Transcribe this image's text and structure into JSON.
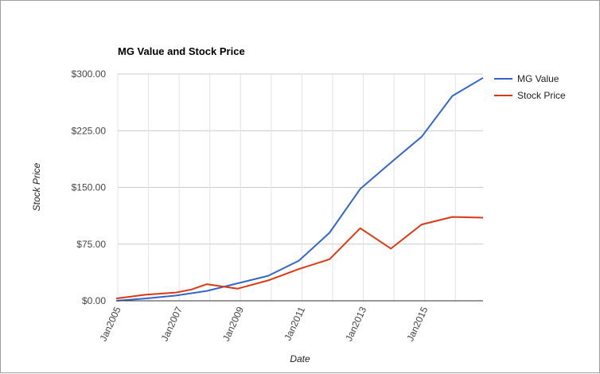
{
  "chart_data": {
    "type": "line",
    "title": "MG Value and Stock Price",
    "xlabel": "Date",
    "ylabel": "Stock Price",
    "ylim": [
      0,
      300
    ],
    "xlim": [
      2005.0,
      2016.9
    ],
    "yticks": [
      {
        "value": 0,
        "label": "$0.00"
      },
      {
        "value": 75,
        "label": "$75.00"
      },
      {
        "value": 150,
        "label": "$150.00"
      },
      {
        "value": 225,
        "label": "$225.00"
      },
      {
        "value": 300,
        "label": "$300.00"
      }
    ],
    "xticks": [
      {
        "value": 2005,
        "label": "Jan2005"
      },
      {
        "value": 2007,
        "label": "Jan2007"
      },
      {
        "value": 2009,
        "label": "Jan2009"
      },
      {
        "value": 2011,
        "label": "Jan2011"
      },
      {
        "value": 2013,
        "label": "Jan2013"
      },
      {
        "value": 2015,
        "label": "Jan2015"
      }
    ],
    "grid": true,
    "legend_position": "right",
    "series": [
      {
        "name": "MG Value",
        "color": "#3366cc",
        "points": [
          {
            "x": 2004.95,
            "y": 0
          },
          {
            "x": 2005.9,
            "y": 3
          },
          {
            "x": 2006.9,
            "y": 7
          },
          {
            "x": 2007.9,
            "y": 13
          },
          {
            "x": 2008.9,
            "y": 23
          },
          {
            "x": 2009.9,
            "y": 33
          },
          {
            "x": 2010.9,
            "y": 53
          },
          {
            "x": 2011.9,
            "y": 90
          },
          {
            "x": 2012.9,
            "y": 148
          },
          {
            "x": 2013.9,
            "y": 183
          },
          {
            "x": 2014.9,
            "y": 217
          },
          {
            "x": 2015.9,
            "y": 271
          },
          {
            "x": 2016.9,
            "y": 295
          }
        ]
      },
      {
        "name": "Stock Price",
        "color": "#dc3912",
        "points": [
          {
            "x": 2004.95,
            "y": 3
          },
          {
            "x": 2005.9,
            "y": 8
          },
          {
            "x": 2006.9,
            "y": 11
          },
          {
            "x": 2007.4,
            "y": 15
          },
          {
            "x": 2007.9,
            "y": 22
          },
          {
            "x": 2008.9,
            "y": 16
          },
          {
            "x": 2009.9,
            "y": 27
          },
          {
            "x": 2010.9,
            "y": 42
          },
          {
            "x": 2011.9,
            "y": 55
          },
          {
            "x": 2012.9,
            "y": 96
          },
          {
            "x": 2013.9,
            "y": 69
          },
          {
            "x": 2014.9,
            "y": 101
          },
          {
            "x": 2015.9,
            "y": 111
          },
          {
            "x": 2016.9,
            "y": 110
          }
        ]
      }
    ]
  }
}
